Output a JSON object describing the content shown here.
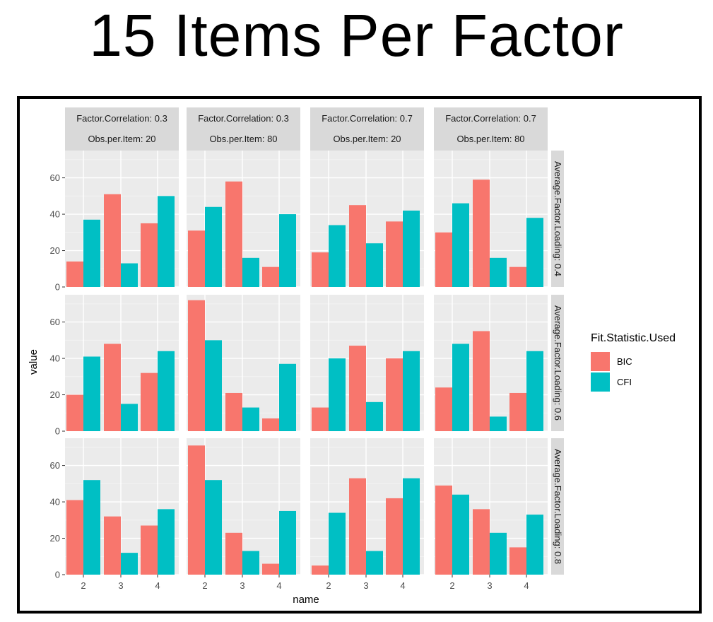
{
  "title": "15 Items Per Factor",
  "chart_data": {
    "type": "bar",
    "facet": "grid",
    "xlabel": "name",
    "ylabel": "value",
    "ylim": [
      0,
      75
    ],
    "yticks": [
      0,
      20,
      40,
      60
    ],
    "categories": [
      "2",
      "3",
      "4"
    ],
    "grid": true,
    "legend_position": "right",
    "legend": {
      "title": "Fit.Statistic.Used",
      "entries": [
        {
          "name": "BIC",
          "color": "#F8766D"
        },
        {
          "name": "CFI",
          "color": "#00BFC4"
        }
      ]
    },
    "columns": [
      {
        "line1": "Factor.Correlation: 0.3",
        "line2": "Obs.per.Item: 20"
      },
      {
        "line1": "Factor.Correlation: 0.3",
        "line2": "Obs.per.Item: 80"
      },
      {
        "line1": "Factor.Correlation: 0.7",
        "line2": "Obs.per.Item: 20"
      },
      {
        "line1": "Factor.Correlation: 0.7",
        "line2": "Obs.per.Item: 80"
      }
    ],
    "rows": [
      "Average.Factor.Loading: 0.4",
      "Average.Factor.Loading: 0.6",
      "Average.Factor.Loading: 0.8"
    ],
    "panels": [
      [
        {
          "BIC": [
            14,
            51,
            35
          ],
          "CFI": [
            37,
            13,
            50
          ]
        },
        {
          "BIC": [
            31,
            58,
            11
          ],
          "CFI": [
            44,
            16,
            40
          ]
        },
        {
          "BIC": [
            19,
            45,
            36
          ],
          "CFI": [
            34,
            24,
            42
          ]
        },
        {
          "BIC": [
            30,
            59,
            11
          ],
          "CFI": [
            46,
            16,
            38
          ]
        }
      ],
      [
        {
          "BIC": [
            20,
            48,
            32
          ],
          "CFI": [
            41,
            15,
            44
          ]
        },
        {
          "BIC": [
            72,
            21,
            7
          ],
          "CFI": [
            50,
            13,
            37
          ]
        },
        {
          "BIC": [
            13,
            47,
            40
          ],
          "CFI": [
            40,
            16,
            44
          ]
        },
        {
          "BIC": [
            24,
            55,
            21
          ],
          "CFI": [
            48,
            8,
            44
          ]
        }
      ],
      [
        {
          "BIC": [
            41,
            32,
            27
          ],
          "CFI": [
            52,
            12,
            36
          ]
        },
        {
          "BIC": [
            71,
            23,
            6
          ],
          "CFI": [
            52,
            13,
            35
          ]
        },
        {
          "BIC": [
            5,
            53,
            42
          ],
          "CFI": [
            34,
            13,
            53
          ]
        },
        {
          "BIC": [
            49,
            36,
            15
          ],
          "CFI": [
            44,
            23,
            33
          ]
        }
      ]
    ]
  }
}
